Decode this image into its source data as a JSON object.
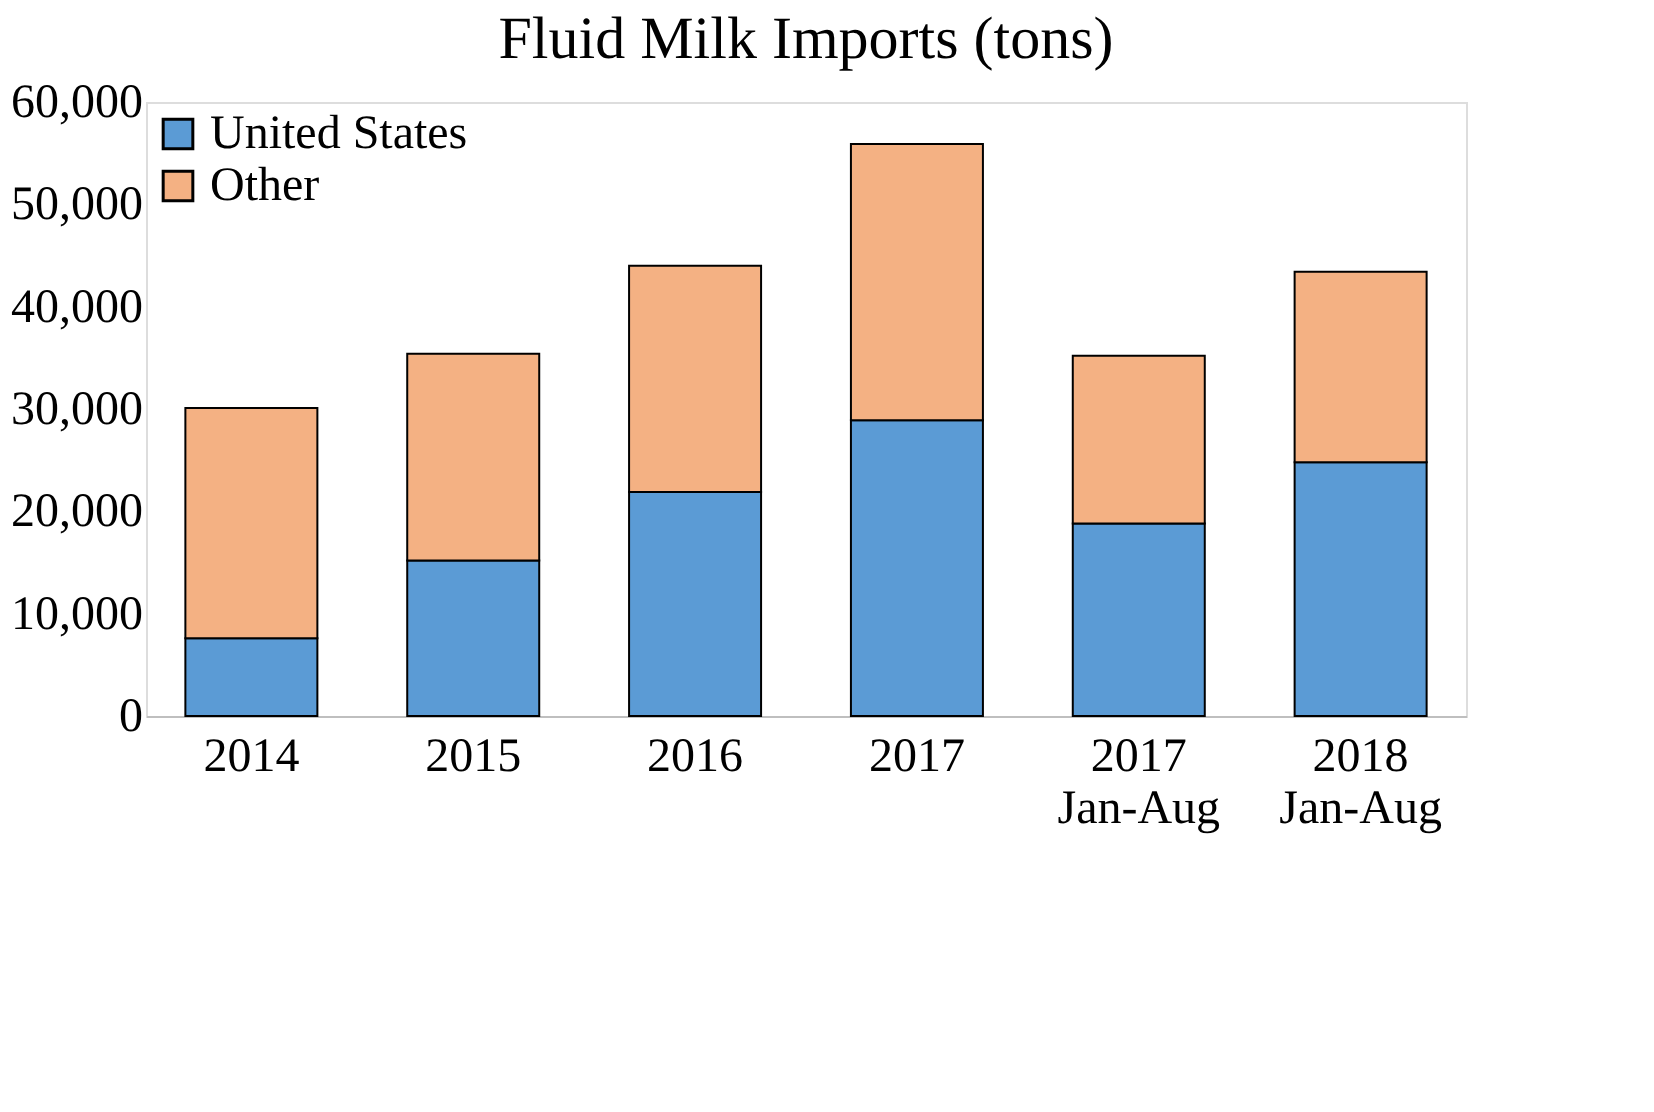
{
  "chart_data": {
    "type": "bar",
    "title": "Fluid Milk Imports (tons)",
    "stacked": true,
    "categories": [
      "2014",
      "2015",
      "2016",
      "2017",
      "2017\nJan-Aug",
      "2018\nJan-Aug"
    ],
    "series": [
      {
        "name": "United States",
        "color": "#5b9bd5",
        "values": [
          7600,
          15200,
          21900,
          28900,
          18800,
          24800
        ]
      },
      {
        "name": "Other",
        "color": "#f4b183",
        "values": [
          22500,
          20200,
          22100,
          27000,
          16400,
          18600
        ]
      }
    ],
    "ylim": [
      0,
      60000
    ],
    "yticks": [
      {
        "value": 0,
        "label": "0"
      },
      {
        "value": 10000,
        "label": "10,000"
      },
      {
        "value": 20000,
        "label": "20,000"
      },
      {
        "value": 30000,
        "label": "30,000"
      },
      {
        "value": 40000,
        "label": "40,000"
      },
      {
        "value": 50000,
        "label": "50,000"
      },
      {
        "value": 60000,
        "label": "60,000"
      }
    ],
    "grid": false,
    "legend": "top left"
  }
}
